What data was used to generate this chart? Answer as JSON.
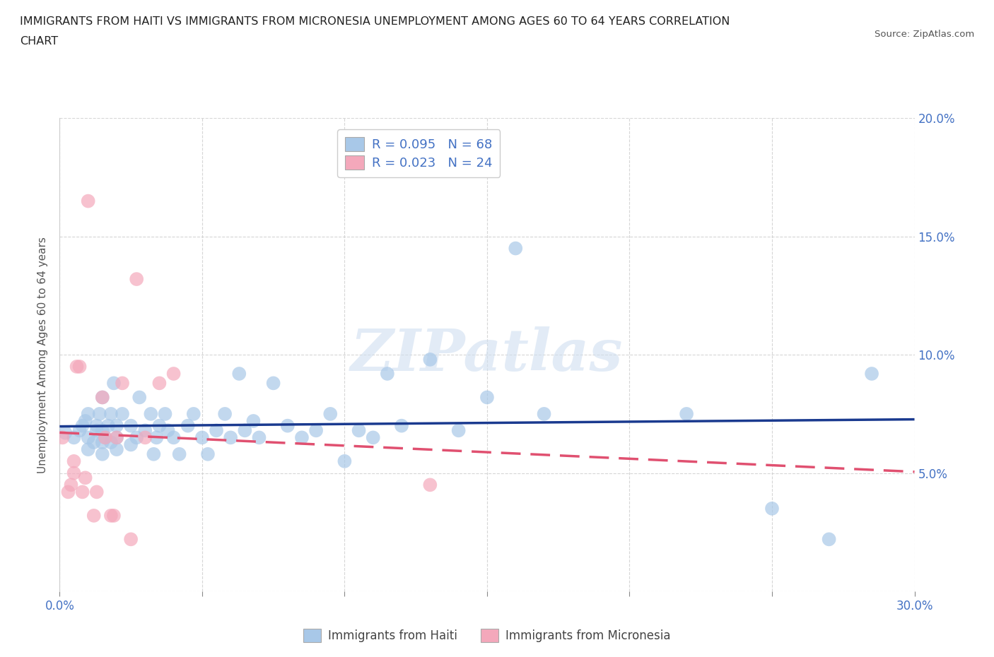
{
  "title_line1": "IMMIGRANTS FROM HAITI VS IMMIGRANTS FROM MICRONESIA UNEMPLOYMENT AMONG AGES 60 TO 64 YEARS CORRELATION",
  "title_line2": "CHART",
  "source_text": "Source: ZipAtlas.com",
  "ylabel": "Unemployment Among Ages 60 to 64 years",
  "xlim": [
    0.0,
    0.3
  ],
  "ylim": [
    0.0,
    0.2
  ],
  "xticks": [
    0.0,
    0.05,
    0.1,
    0.15,
    0.2,
    0.25,
    0.3
  ],
  "yticks": [
    0.0,
    0.05,
    0.1,
    0.15,
    0.2
  ],
  "haiti_color": "#a8c8e8",
  "micronesia_color": "#f4a8bb",
  "haiti_line_color": "#1a3a8f",
  "micronesia_line_color": "#e05070",
  "R_haiti": "0.095",
  "N_haiti": "68",
  "R_micronesia": "0.023",
  "N_micronesia": "24",
  "haiti_x": [
    0.002,
    0.005,
    0.007,
    0.008,
    0.009,
    0.01,
    0.01,
    0.01,
    0.012,
    0.013,
    0.013,
    0.014,
    0.015,
    0.015,
    0.015,
    0.015,
    0.016,
    0.017,
    0.018,
    0.018,
    0.019,
    0.02,
    0.02,
    0.02,
    0.022,
    0.025,
    0.025,
    0.027,
    0.028,
    0.03,
    0.032,
    0.033,
    0.034,
    0.035,
    0.037,
    0.038,
    0.04,
    0.042,
    0.045,
    0.047,
    0.05,
    0.052,
    0.055,
    0.058,
    0.06,
    0.063,
    0.065,
    0.068,
    0.07,
    0.075,
    0.08,
    0.085,
    0.09,
    0.095,
    0.1,
    0.105,
    0.11,
    0.115,
    0.12,
    0.13,
    0.14,
    0.15,
    0.16,
    0.17,
    0.22,
    0.25,
    0.27,
    0.285
  ],
  "haiti_y": [
    0.067,
    0.065,
    0.068,
    0.07,
    0.072,
    0.06,
    0.065,
    0.075,
    0.063,
    0.068,
    0.07,
    0.075,
    0.058,
    0.063,
    0.068,
    0.082,
    0.065,
    0.07,
    0.063,
    0.075,
    0.088,
    0.06,
    0.065,
    0.07,
    0.075,
    0.062,
    0.07,
    0.065,
    0.082,
    0.068,
    0.075,
    0.058,
    0.065,
    0.07,
    0.075,
    0.068,
    0.065,
    0.058,
    0.07,
    0.075,
    0.065,
    0.058,
    0.068,
    0.075,
    0.065,
    0.092,
    0.068,
    0.072,
    0.065,
    0.088,
    0.07,
    0.065,
    0.068,
    0.075,
    0.055,
    0.068,
    0.065,
    0.092,
    0.07,
    0.098,
    0.068,
    0.082,
    0.145,
    0.075,
    0.075,
    0.035,
    0.022,
    0.092
  ],
  "micronesia_x": [
    0.001,
    0.003,
    0.004,
    0.005,
    0.005,
    0.006,
    0.007,
    0.008,
    0.009,
    0.01,
    0.012,
    0.013,
    0.015,
    0.016,
    0.018,
    0.019,
    0.02,
    0.022,
    0.025,
    0.027,
    0.03,
    0.035,
    0.04,
    0.13
  ],
  "micronesia_y": [
    0.065,
    0.042,
    0.045,
    0.05,
    0.055,
    0.095,
    0.095,
    0.042,
    0.048,
    0.165,
    0.032,
    0.042,
    0.082,
    0.065,
    0.032,
    0.032,
    0.065,
    0.088,
    0.022,
    0.132,
    0.065,
    0.088,
    0.092,
    0.045
  ],
  "background_color": "#ffffff",
  "grid_color": "#cccccc",
  "watermark_text": "ZIPatlas",
  "legend_haiti_label": "R = 0.095   N = 68",
  "legend_micronesia_label": "R = 0.023   N = 24",
  "legend_bottom_haiti": "Immigrants from Haiti",
  "legend_bottom_micronesia": "Immigrants from Micronesia",
  "label_color": "#4472c4",
  "title_fontsize": 11.5,
  "tick_label_fontsize": 12
}
